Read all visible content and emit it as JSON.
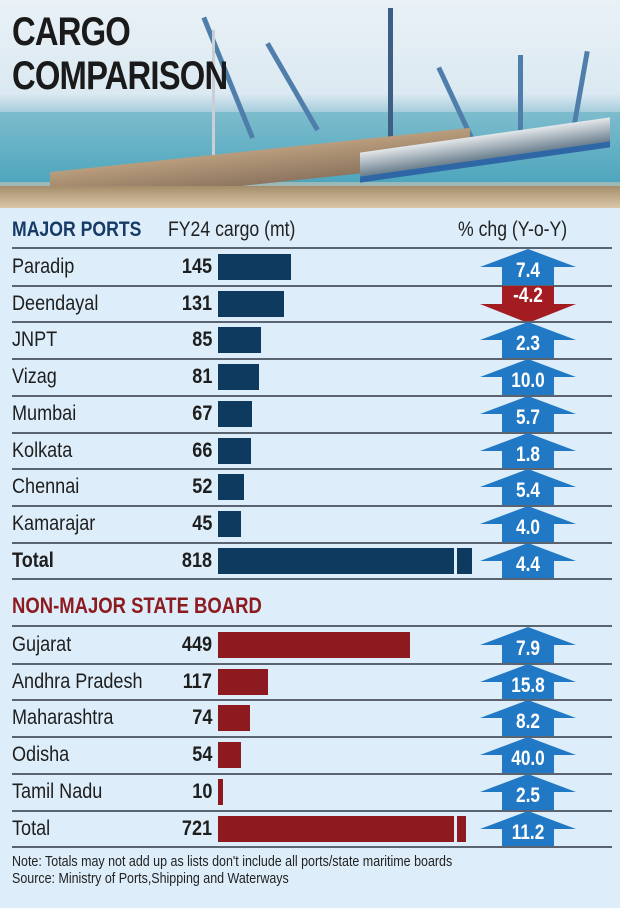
{
  "title": {
    "line1": "CARGO",
    "line2": "COMPARISON"
  },
  "colors": {
    "major_bar": "#0f3a5f",
    "state_bar": "#8c1a1f",
    "arrow_up": "#2178c4",
    "arrow_down": "#a31c22",
    "background": "#ddeefa"
  },
  "headers": {
    "major": "MAJOR PORTS",
    "cargo": "FY24 cargo (mt)",
    "change": "% chg (Y-o-Y)"
  },
  "section2": {
    "title": "NON-MAJOR STATE BOARD"
  },
  "major_ports": [
    {
      "name": "Paradip",
      "value": "145",
      "change": "7.4",
      "dir": "up"
    },
    {
      "name": "Deendayal",
      "value": "131",
      "change": "-4.2",
      "dir": "down"
    },
    {
      "name": "JNPT",
      "value": "85",
      "change": "2.3",
      "dir": "up"
    },
    {
      "name": "Vizag",
      "value": "81",
      "change": "10.0",
      "dir": "up"
    },
    {
      "name": "Mumbai",
      "value": "67",
      "change": "5.7",
      "dir": "up"
    },
    {
      "name": "Kolkata",
      "value": "66",
      "change": "1.8",
      "dir": "up"
    },
    {
      "name": "Chennai",
      "value": "52",
      "change": "5.4",
      "dir": "up"
    },
    {
      "name": "Kamarajar",
      "value": "45",
      "change": "4.0",
      "dir": "up"
    },
    {
      "name": "Total",
      "value": "818",
      "change": "4.4",
      "dir": "up"
    }
  ],
  "state_boards": [
    {
      "name": "Gujarat",
      "value": "449",
      "change": "7.9",
      "dir": "up"
    },
    {
      "name": "Andhra Pradesh",
      "value": "117",
      "change": "15.8",
      "dir": "up"
    },
    {
      "name": "Maharashtra",
      "value": "74",
      "change": "8.2",
      "dir": "up"
    },
    {
      "name": "Odisha",
      "value": "54",
      "change": "40.0",
      "dir": "up"
    },
    {
      "name": "Tamil Nadu",
      "value": "10",
      "change": "2.5",
      "dir": "up"
    },
    {
      "name": "Total",
      "value": "721",
      "change": "11.2",
      "dir": "up"
    }
  ],
  "footer": {
    "note": "Note: Totals may not add up as lists don't include all ports/state maritime boards",
    "source": "Source: Ministry of Ports,Shipping and Waterways"
  },
  "chart_data": {
    "type": "bar",
    "title": "CARGO COMPARISON",
    "xlabel": "",
    "ylabel": "FY24 cargo (mt)",
    "series": [
      {
        "name": "Major Ports — FY24 cargo (mt)",
        "categories": [
          "Paradip",
          "Deendayal",
          "JNPT",
          "Vizag",
          "Mumbai",
          "Kolkata",
          "Chennai",
          "Kamarajar",
          "Total"
        ],
        "values": [
          145,
          131,
          85,
          81,
          67,
          66,
          52,
          45,
          818
        ],
        "pct_change_yoy": [
          7.4,
          -4.2,
          2.3,
          10.0,
          5.7,
          1.8,
          5.4,
          4.0,
          4.4
        ]
      },
      {
        "name": "Non-Major State Board — FY24 cargo (mt)",
        "categories": [
          "Gujarat",
          "Andhra Pradesh",
          "Maharashtra",
          "Odisha",
          "Tamil Nadu",
          "Total"
        ],
        "values": [
          449,
          117,
          74,
          54,
          10,
          721
        ],
        "pct_change_yoy": [
          7.9,
          15.8,
          8.2,
          40.0,
          2.5,
          11.2
        ]
      }
    ],
    "annotations": [
      "Total bars are shown with a scale break",
      "Arrows indicate % chg (Y-o-Y); red down arrow for negative"
    ],
    "legend": "none",
    "grid": false,
    "orientation": "horizontal"
  }
}
